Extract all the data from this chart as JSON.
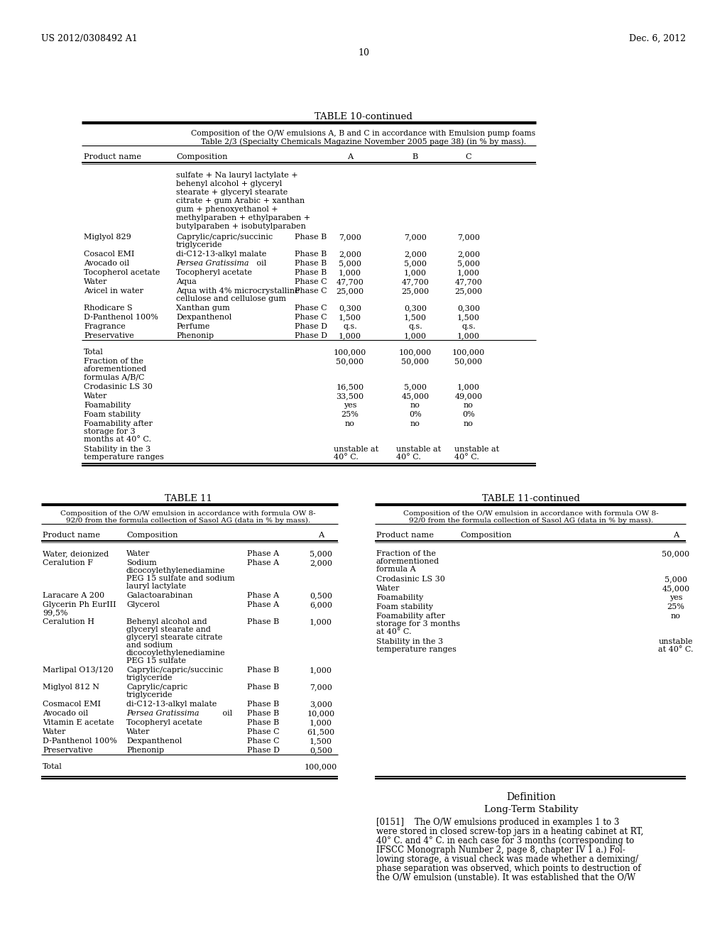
{
  "header_left": "US 2012/0308492 A1",
  "header_right": "Dec. 6, 2012",
  "page_num": "10",
  "bg_color": "#ffffff",
  "text_color": "#000000",
  "table10_title": "TABLE 10-continued",
  "table10_subtitle1": "Composition of the O/W emulsions A, B and C in accordance with Emulsion pump foams",
  "table10_subtitle2": "Table 2/3 (Specialty Chemicals Magazine November 2005 page 38) (in % by mass).",
  "table11_title": "TABLE 11",
  "table11_subtitle1": "Composition of the O/W emulsion in accordance with formula OW 8-",
  "table11_subtitle2": "92/0 from the formula collection of Sasol AG (data in % by mass).",
  "table11c_title": "TABLE 11-continued",
  "table11c_subtitle1": "Composition of the O/W emulsion in accordance with formula OW 8-",
  "table11c_subtitle2": "92/0 from the formula collection of Sasol AG (data in % by mass).",
  "definition_title": "Definition",
  "definition_subtitle": "Long-Term Stability",
  "definition_text": "[0151]    The O/W emulsions produced in examples 1 to 3 were stored in closed screw-top jars in a heating cabinet at RT, 40° C. and 4° C. in each case for 3 months (corresponding to IFSCC Monograph Number 2, page 8, chapter IV 1 a.) Fol-lowing storage, a visual check was made whether a demixing/ phase separation was observed, which points to destruction of the O/W emulsion (unstable). It was established that the O/W"
}
